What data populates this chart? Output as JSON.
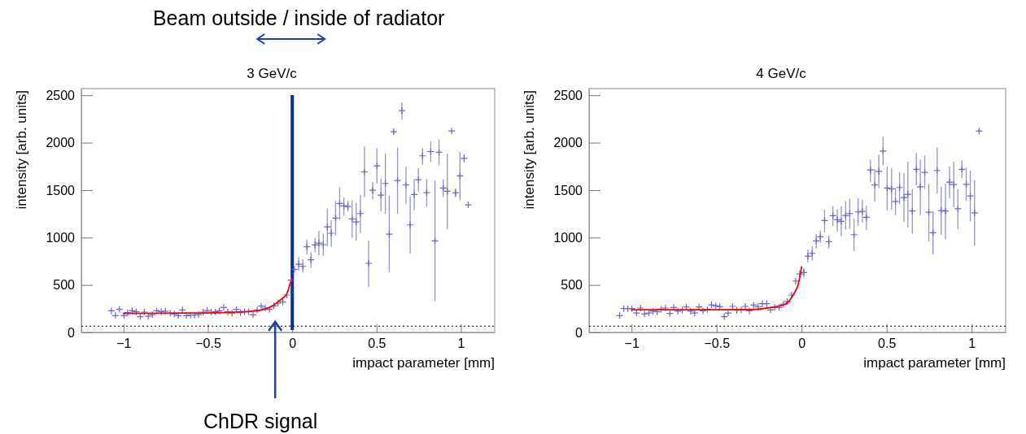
{
  "chart_data": [
    {
      "type": "scatter",
      "title": "3 GeV/c",
      "xlabel": "impact parameter [mm]",
      "ylabel": "intensity [arb. units]",
      "xlim": [
        -1.25,
        1.2
      ],
      "ylim": [
        0,
        2570
      ],
      "xticks": [
        -1,
        -0.5,
        0,
        0.5,
        1
      ],
      "yticks": [
        0,
        500,
        1000,
        1500,
        2000,
        2500
      ],
      "ref_lines": [
        {
          "axis": "x",
          "value": 0,
          "color": "#0a2f9e",
          "line_style": "solid"
        },
        {
          "axis": "y",
          "value": 66,
          "color": "#000000",
          "line_style": "dotted"
        }
      ],
      "annotations": [
        "Beam outside / inside of radiator",
        "ChDR signal"
      ],
      "series": [
        {
          "marker": "cross",
          "color": "#6666cc",
          "x": [
            -1.072,
            -1.048,
            -1.024,
            -0.997,
            -0.976,
            -0.949,
            -0.925,
            -0.901,
            -0.877,
            -0.853,
            -0.829,
            -0.803,
            -0.776,
            -0.752,
            -0.723,
            -0.699,
            -0.675,
            -0.651,
            -0.627,
            -0.603,
            -0.579,
            -0.555,
            -0.528,
            -0.504,
            -0.48,
            -0.456,
            -0.432,
            -0.406,
            -0.382,
            -0.357,
            -0.331,
            -0.307,
            -0.283,
            -0.259,
            -0.232,
            -0.208,
            -0.184,
            -0.16,
            -0.134,
            -0.109,
            -0.085,
            -0.056,
            -0.032,
            -0.008,
            0.013,
            0.038,
            0.063,
            0.087,
            0.111,
            0.135,
            0.158,
            0.184,
            0.208,
            0.231,
            0.257,
            0.281,
            0.306,
            0.33,
            0.355,
            0.379,
            0.404,
            0.428,
            0.453,
            0.477,
            0.502,
            0.526,
            0.552,
            0.575,
            0.601,
            0.624,
            0.65,
            0.674,
            0.699,
            0.723,
            0.748,
            0.772,
            0.797,
            0.821,
            0.846,
            0.87,
            0.895,
            0.919,
            0.945,
            0.968,
            0.994,
            1.019,
            1.043
          ],
          "values": [
            228,
            177,
            243,
            177,
            208,
            228,
            217,
            166,
            214,
            171,
            188,
            228,
            217,
            223,
            203,
            194,
            177,
            237,
            177,
            183,
            183,
            188,
            214,
            231,
            214,
            217,
            228,
            263,
            217,
            203,
            243,
            208,
            217,
            217,
            186,
            237,
            277,
            257,
            243,
            280,
            308,
            320,
            394,
            551,
            665,
            719,
            696,
            902,
            765,
            922,
            942,
            925,
            1113,
            1045,
            1204,
            1359,
            1333,
            1327,
            1196,
            1164,
            1253,
            1692,
            728,
            1498,
            1755,
            1447,
            1570,
            1036,
            2115,
            1601,
            2337,
            1555,
            1133,
            1453,
            1610,
            1861,
            1473,
            1906,
            965,
            1898,
            1521,
            1487,
            2123,
            1473,
            1650,
            1835,
            1344
          ],
          "errors": [
            null,
            null,
            null,
            null,
            null,
            null,
            null,
            null,
            null,
            null,
            null,
            null,
            null,
            null,
            null,
            null,
            null,
            null,
            null,
            null,
            null,
            null,
            null,
            null,
            null,
            null,
            null,
            null,
            null,
            null,
            null,
            null,
            null,
            null,
            null,
            null,
            null,
            null,
            null,
            null,
            null,
            null,
            null,
            null,
            null,
            [
              651,
              797
            ],
            [
              631,
              771
            ],
            [
              822,
              979
            ],
            [
              679,
              845
            ],
            [
              845,
              999
            ],
            [
              813,
              1070
            ],
            [
              808,
              1042
            ],
            [
              908,
              1307
            ],
            [
              902,
              1184
            ],
            [
              1022,
              1387
            ],
            [
              1187,
              1530
            ],
            [
              1230,
              1421
            ],
            [
              1273,
              1387
            ],
            [
              999,
              1393
            ],
            [
              965,
              1364
            ],
            [
              1050,
              1450
            ],
            [
              1427,
              1958
            ],
            [
              479,
              970
            ],
            [
              1401,
              1587
            ],
            [
              1570,
              1941
            ],
            [
              1279,
              1621
            ],
            [
              1250,
              1884
            ],
            [
              636,
              1441
            ],
            [
              2092,
              2135
            ],
            [
              1250,
              1949
            ],
            [
              2243,
              2426
            ],
            [
              1356,
              1750
            ],
            [
              828,
              1436
            ],
            [
              1287,
              1615
            ],
            [
              1484,
              1730
            ],
            [
              1769,
              1944
            ],
            [
              1327,
              1613
            ],
            [
              1798,
              2012
            ],
            [
              331,
              1601
            ],
            [
              1764,
              2035
            ],
            [
              1427,
              1613
            ],
            [
              1087,
              1884
            ],
            null,
            [
              1421,
              1521
            ],
            [
              1393,
              1901
            ],
            [
              1792,
              1878
            ],
            null
          ]
        },
        {
          "type": "line",
          "color": "#ff0000",
          "x": [
            -1,
            -0.75,
            -0.5,
            -0.3,
            -0.208,
            -0.112,
            -0.064,
            -0.032,
            -0.008,
            0
          ],
          "values": [
            200,
            203,
            205,
            217,
            228,
            285,
            351,
            408,
            537,
            560
          ]
        }
      ]
    },
    {
      "type": "scatter",
      "title": "4 GeV/c",
      "xlabel": "impact parameter [mm]",
      "ylabel": "intensity [arb. units]",
      "xlim": [
        -1.25,
        1.2
      ],
      "ylim": [
        0,
        2570
      ],
      "xticks": [
        -1,
        -0.5,
        0,
        0.5,
        1
      ],
      "yticks": [
        0,
        500,
        1000,
        1500,
        2000,
        2500
      ],
      "ref_lines": [
        {
          "axis": "y",
          "value": 66,
          "color": "#000000",
          "line_style": "dotted"
        }
      ],
      "series": [
        {
          "marker": "cross",
          "color": "#6666cc",
          "x": [
            -1.07,
            -1.046,
            -1.022,
            -0.998,
            -0.971,
            -0.947,
            -0.924,
            -0.898,
            -0.874,
            -0.85,
            -0.826,
            -0.801,
            -0.775,
            -0.752,
            -0.728,
            -0.702,
            -0.678,
            -0.653,
            -0.629,
            -0.604,
            -0.58,
            -0.554,
            -0.53,
            -0.505,
            -0.481,
            -0.455,
            -0.432,
            -0.406,
            -0.381,
            -0.355,
            -0.331,
            -0.307,
            -0.282,
            -0.256,
            -0.231,
            -0.205,
            -0.183,
            -0.158,
            -0.132,
            -0.107,
            -0.084,
            -0.059,
            -0.035,
            -0.011,
            0.013,
            0.037,
            0.062,
            0.086,
            0.11,
            0.135,
            0.16,
            0.184,
            0.21,
            0.233,
            0.259,
            0.283,
            0.308,
            0.332,
            0.357,
            0.381,
            0.405,
            0.43,
            0.454,
            0.479,
            0.503,
            0.529,
            0.552,
            0.576,
            0.602,
            0.625,
            0.651,
            0.675,
            0.698,
            0.724,
            0.748,
            0.773,
            0.797,
            0.821,
            0.846,
            0.87,
            0.895,
            0.919,
            0.943,
            0.968,
            0.992,
            1.017,
            1.044
          ],
          "values": [
            177,
            251,
            251,
            251,
            205,
            257,
            194,
            205,
            223,
            217,
            245,
            257,
            200,
            263,
            223,
            234,
            268,
            223,
            205,
            268,
            228,
            243,
            291,
            280,
            271,
            166,
            205,
            274,
            234,
            237,
            274,
            228,
            288,
            271,
            303,
            303,
            237,
            263,
            263,
            297,
            325,
            394,
            542,
            616,
            631,
            805,
            833,
            965,
            1007,
            1179,
            956,
            1230,
            1187,
            1170,
            1233,
            1253,
            1030,
            1270,
            1276,
            1213,
            1712,
            1555,
            1698,
            1912,
            1521,
            1513,
            1381,
            1527,
            1421,
            1456,
            1279,
            1718,
            1535,
            1687,
            1267,
            1050,
            1707,
            1284,
            1279,
            1584,
            1558,
            1304,
            1718,
            1561,
            1438,
            1261,
            2123
          ],
          "errors": [
            null,
            null,
            null,
            null,
            null,
            null,
            null,
            null,
            null,
            null,
            null,
            null,
            null,
            null,
            null,
            null,
            null,
            null,
            null,
            null,
            null,
            null,
            null,
            null,
            null,
            null,
            null,
            null,
            null,
            null,
            null,
            null,
            null,
            null,
            null,
            null,
            null,
            null,
            null,
            null,
            null,
            null,
            null,
            null,
            [
              581,
              679
            ],
            [
              736,
              873
            ],
            [
              759,
              908
            ],
            [
              885,
              1036
            ],
            [
              942,
              1073
            ],
            [
              1056,
              1293
            ],
            [
              885,
              1022
            ],
            [
              1122,
              1330
            ],
            [
              1065,
              1301
            ],
            [
              1016,
              1330
            ],
            [
              1085,
              1384
            ],
            [
              1093,
              1407
            ],
            [
              856,
              1199
            ],
            [
              1122,
              1416
            ],
            [
              1159,
              1398
            ],
            [
              1079,
              1336
            ],
            [
              1587,
              1821
            ],
            [
              1378,
              1721
            ],
            [
              1521,
              1872
            ],
            [
              1758,
              2063
            ],
            [
              1287,
              1750
            ],
            [
              1293,
              1730
            ],
            [
              1236,
              1521
            ],
            [
              1350,
              1692
            ],
            [
              1164,
              1678
            ],
            [
              1107,
              1798
            ],
            [
              1045,
              1507
            ],
            [
              1550,
              1892
            ],
            [
              1236,
              1821
            ],
            [
              1513,
              1864
            ],
            [
              959,
              1564
            ],
            [
              822,
              1279
            ],
            [
              1464,
              1949
            ],
            [
              1027,
              1535
            ],
            [
              979,
              1570
            ],
            [
              1416,
              1750
            ],
            [
              1319,
              1798
            ],
            [
              1085,
              1507
            ],
            [
              1627,
              1812
            ],
            [
              1387,
              1735
            ],
            [
              1170,
              1707
            ],
            [
              913,
              1607
            ],
            null
          ]
        },
        {
          "type": "line",
          "color": "#ff0000",
          "x": [
            -1,
            -0.75,
            -0.5,
            -0.3,
            -0.2,
            -0.1,
            -0.05,
            -0.02,
            0
          ],
          "values": [
            238,
            238,
            238,
            240,
            257,
            294,
            394,
            508,
            690
          ]
        }
      ]
    }
  ]
}
